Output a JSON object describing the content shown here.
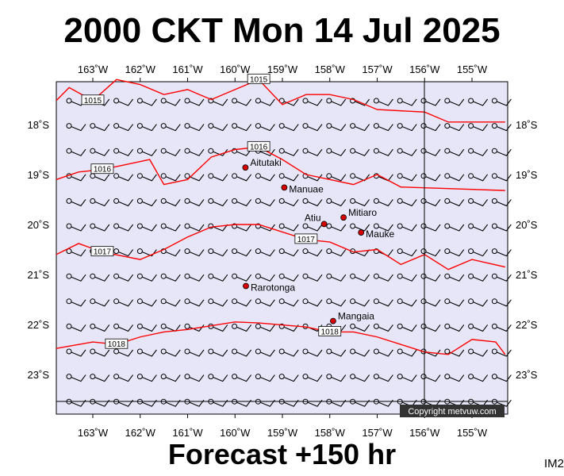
{
  "header": {
    "title": "2000 CKT Mon 14 Jul 2025"
  },
  "footer": {
    "forecast_label": "Forecast +150 hr",
    "model_tag": "IM2"
  },
  "map": {
    "background_color": "#e6e6f8",
    "isobar_color": "#ff0000",
    "lon_ticks": [
      "163˚W",
      "162˚W",
      "161˚W",
      "160˚W",
      "159˚W",
      "158˚W",
      "157˚W",
      "156˚W",
      "155˚W"
    ],
    "lat_ticks": [
      "18˚S",
      "19˚S",
      "20˚S",
      "21˚S",
      "22˚S",
      "23˚S"
    ],
    "places": [
      {
        "name": "Aitutaki",
        "lon": -159.78,
        "lat": -18.86
      },
      {
        "name": "Manuae",
        "lon": -158.96,
        "lat": -19.26
      },
      {
        "name": "Atiu",
        "lon": -158.12,
        "lat": -19.99
      },
      {
        "name": "Mitiaro",
        "lon": -157.71,
        "lat": -19.86
      },
      {
        "name": "Mauke",
        "lon": -157.34,
        "lat": -20.16
      },
      {
        "name": "Rarotonga",
        "lon": -159.77,
        "lat": -21.23
      },
      {
        "name": "Mangaia",
        "lon": -157.93,
        "lat": -21.93
      }
    ],
    "isobars": [
      {
        "label": "1015",
        "points": [
          [
            -163.8,
            -17.52
          ],
          [
            -163.5,
            -17.26
          ],
          [
            -163.0,
            -17.52
          ],
          [
            -162.5,
            -17.1
          ],
          [
            -162.0,
            -17.2
          ],
          [
            -161.5,
            -17.4
          ],
          [
            -161.0,
            -17.3
          ],
          [
            -160.5,
            -17.5
          ],
          [
            -160.0,
            -17.3
          ],
          [
            -159.5,
            -17.1
          ],
          [
            -159.0,
            -17.6
          ],
          [
            -158.5,
            -17.4
          ],
          [
            -158.0,
            -17.4
          ],
          [
            -157.5,
            -17.5
          ],
          [
            -157.0,
            -17.7
          ],
          [
            -156.0,
            -17.75
          ],
          [
            -155.5,
            -17.95
          ],
          [
            -154.3,
            -17.95
          ]
        ]
      },
      {
        "label": "1016",
        "points": [
          [
            -163.8,
            -19.1
          ],
          [
            -163.3,
            -18.95
          ],
          [
            -162.8,
            -18.9
          ],
          [
            -162.3,
            -18.8
          ],
          [
            -161.8,
            -18.7
          ],
          [
            -161.5,
            -19.2
          ],
          [
            -161.0,
            -19.1
          ],
          [
            -160.5,
            -18.65
          ],
          [
            -160.0,
            -18.5
          ],
          [
            -159.5,
            -18.45
          ],
          [
            -159.0,
            -18.7
          ],
          [
            -158.5,
            -19.0
          ],
          [
            -158.0,
            -19.1
          ],
          [
            -157.5,
            -19.2
          ],
          [
            -157.0,
            -19.0
          ],
          [
            -156.5,
            -19.25
          ],
          [
            -155.5,
            -19.28
          ],
          [
            -154.3,
            -19.32
          ]
        ]
      },
      {
        "label": "1017",
        "points": [
          [
            -163.8,
            -20.6
          ],
          [
            -163.3,
            -20.38
          ],
          [
            -162.8,
            -20.55
          ],
          [
            -162.0,
            -20.7
          ],
          [
            -161.5,
            -20.5
          ],
          [
            -161.0,
            -20.25
          ],
          [
            -160.5,
            -20.05
          ],
          [
            -160.0,
            -20.0
          ],
          [
            -159.5,
            -20.0
          ],
          [
            -159.0,
            -20.15
          ],
          [
            -158.5,
            -20.3
          ],
          [
            -158.0,
            -20.35
          ],
          [
            -157.5,
            -20.55
          ],
          [
            -157.0,
            -20.5
          ],
          [
            -156.5,
            -20.8
          ],
          [
            -156.0,
            -20.6
          ],
          [
            -155.5,
            -20.9
          ],
          [
            -155.0,
            -20.7
          ],
          [
            -154.3,
            -20.85
          ]
        ]
      },
      {
        "label": "1018",
        "points": [
          [
            -163.8,
            -22.48
          ],
          [
            -163.0,
            -22.35
          ],
          [
            -162.5,
            -22.4
          ],
          [
            -162.0,
            -22.25
          ],
          [
            -161.5,
            -22.15
          ],
          [
            -161.0,
            -22.1
          ],
          [
            -160.0,
            -21.95
          ],
          [
            -159.5,
            -21.97
          ],
          [
            -158.5,
            -22.05
          ],
          [
            -158.0,
            -22.15
          ],
          [
            -157.5,
            -22.15
          ],
          [
            -157.0,
            -22.25
          ],
          [
            -156.5,
            -22.4
          ],
          [
            -156.0,
            -22.55
          ],
          [
            -155.5,
            -22.6
          ],
          [
            -155.0,
            -22.3
          ],
          [
            -154.5,
            -22.35
          ],
          [
            -154.3,
            -22.6
          ]
        ]
      }
    ],
    "copyright": "Copyright metvuw.com"
  }
}
